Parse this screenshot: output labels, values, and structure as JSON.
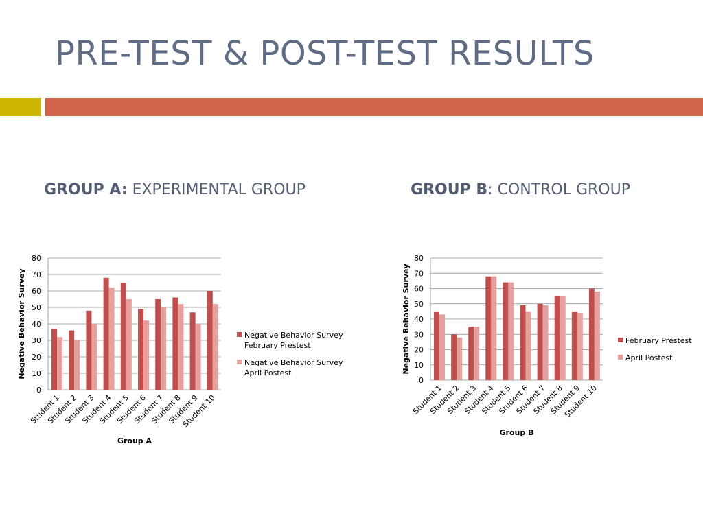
{
  "title": "PRE-TEST & POST-TEST RESULTS",
  "accent_colors": {
    "left_bar": "#cdb702",
    "right_bar": "#d3644c"
  },
  "headings": {
    "group_a": {
      "bold": "GROUP A:",
      "rest": " EXPERIMENTAL GROUP"
    },
    "group_b": {
      "bold": "GROUP B",
      "rest": ": CONTROL GROUP"
    }
  },
  "chart_data": [
    {
      "type": "bar",
      "categories": [
        "Student 1",
        "Student 2",
        "Student 3",
        "Student 4",
        "Student 5",
        "Student 6",
        "Student 7",
        "Student 8",
        "Student 9",
        "Student 10"
      ],
      "series": [
        {
          "name": "Negative Behavior Survey February Prestest",
          "legend_lines": [
            "Negative Behavior Survey",
            "February Prestest"
          ],
          "color": "#c0504d",
          "values": [
            37,
            36,
            48,
            68,
            65,
            49,
            55,
            56,
            47,
            60
          ]
        },
        {
          "name": "Negative Behavior Survey April Postest",
          "legend_lines": [
            "Negative Behavior Survey",
            "April Postest"
          ],
          "color": "#e6a09e",
          "values": [
            32,
            30,
            40,
            62,
            55,
            42,
            50,
            52,
            40,
            52
          ]
        }
      ],
      "xlabel": "Group A",
      "ylabel": "Negative Behavior Survey",
      "ylim": [
        0,
        80
      ],
      "yticks": [
        0,
        10,
        20,
        30,
        40,
        50,
        60,
        70,
        80
      ],
      "grid": true,
      "legend": "right"
    },
    {
      "type": "bar",
      "categories": [
        "Student 1",
        "Student 2",
        "Student 3",
        "Student 4",
        "Student 5",
        "Student 6",
        "Student 7",
        "Student 8",
        "Student 9",
        "Student 10"
      ],
      "series": [
        {
          "name": "February Prestest",
          "legend_lines": [
            "February Prestest"
          ],
          "color": "#c0504d",
          "values": [
            45,
            30,
            35,
            68,
            64,
            49,
            50,
            55,
            45,
            60
          ]
        },
        {
          "name": "April Postest",
          "legend_lines": [
            "April Postest"
          ],
          "color": "#e6a09e",
          "values": [
            43,
            28,
            35,
            68,
            64,
            45,
            49,
            55,
            44,
            58
          ]
        }
      ],
      "xlabel": "Group B",
      "ylabel": "Negative Behavior Survey",
      "ylim": [
        0,
        80
      ],
      "yticks": [
        0,
        10,
        20,
        30,
        40,
        50,
        60,
        70,
        80
      ],
      "grid": true,
      "legend": "right"
    }
  ]
}
